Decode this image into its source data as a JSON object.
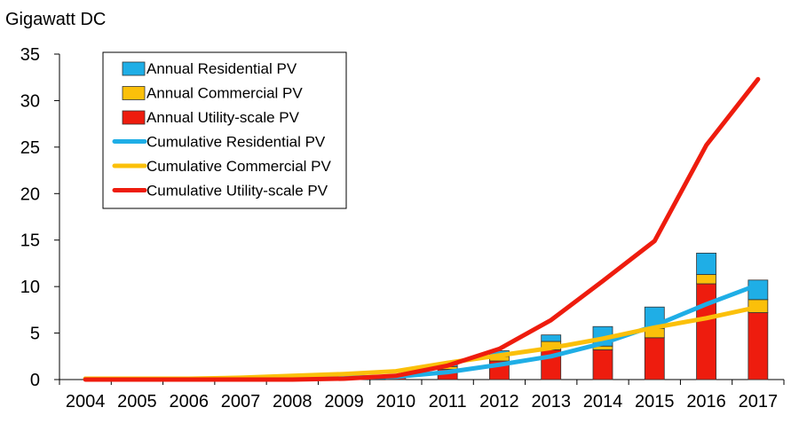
{
  "chart_data": {
    "type": "bar",
    "title": "",
    "ylabel": "Gigawatt DC",
    "xlabel": "",
    "ylim": [
      0,
      35
    ],
    "yticks": [
      0,
      5,
      10,
      15,
      20,
      25,
      30,
      35
    ],
    "categories": [
      "2004",
      "2005",
      "2006",
      "2007",
      "2008",
      "2009",
      "2010",
      "2011",
      "2012",
      "2013",
      "2014",
      "2015",
      "2016",
      "2017"
    ],
    "bar_series": [
      {
        "name": "Annual Utility-scale PV",
        "color": "#ee1c0e",
        "values": [
          0,
          0,
          0,
          0,
          0,
          0.1,
          0.3,
          1.1,
          2.0,
          3.2,
          3.2,
          4.5,
          10.3,
          7.2
        ]
      },
      {
        "name": "Annual Commercial PV",
        "color": "#fbc00a",
        "values": [
          0,
          0,
          0,
          0,
          0,
          0,
          0,
          0.3,
          0.5,
          0.9,
          0.4,
          1.0,
          1.0,
          1.4
        ]
      },
      {
        "name": "Annual Residential PV",
        "color": "#1faee6",
        "values": [
          0,
          0,
          0,
          0,
          0,
          0,
          0,
          0.2,
          0.6,
          0.7,
          2.1,
          2.3,
          2.3,
          2.1
        ]
      }
    ],
    "line_series": [
      {
        "name": "Cumulative Residential PV",
        "color": "#1faee6",
        "values": [
          0.1,
          0.1,
          0.1,
          0.1,
          0.1,
          0.2,
          0.3,
          0.8,
          1.6,
          2.5,
          3.9,
          5.8,
          8.1,
          10.2
        ]
      },
      {
        "name": "Cumulative Commercial PV",
        "color": "#fbc00a",
        "values": [
          0.1,
          0.1,
          0.1,
          0.2,
          0.4,
          0.6,
          0.9,
          1.8,
          2.6,
          3.4,
          4.4,
          5.6,
          6.6,
          7.8
        ]
      },
      {
        "name": "Cumulative Utility-scale PV",
        "color": "#ee1c0e",
        "values": [
          0.0,
          0.0,
          0.0,
          0.0,
          0.0,
          0.1,
          0.4,
          1.5,
          3.3,
          6.4,
          10.6,
          14.9,
          25.2,
          32.3
        ]
      }
    ],
    "legend": [
      {
        "label": "Annual Residential PV",
        "kind": "bar",
        "color": "#1faee6"
      },
      {
        "label": "Annual Commercial PV",
        "kind": "bar",
        "color": "#fbc00a"
      },
      {
        "label": "Annual Utility-scale PV",
        "kind": "bar",
        "color": "#ee1c0e"
      },
      {
        "label": "Cumulative Residential PV",
        "kind": "line",
        "color": "#1faee6"
      },
      {
        "label": "Cumulative Commercial PV",
        "kind": "line",
        "color": "#fbc00a"
      },
      {
        "label": "Cumulative Utility-scale PV",
        "kind": "line",
        "color": "#ee1c0e"
      }
    ],
    "legend_position": "top-left",
    "grid": false
  }
}
